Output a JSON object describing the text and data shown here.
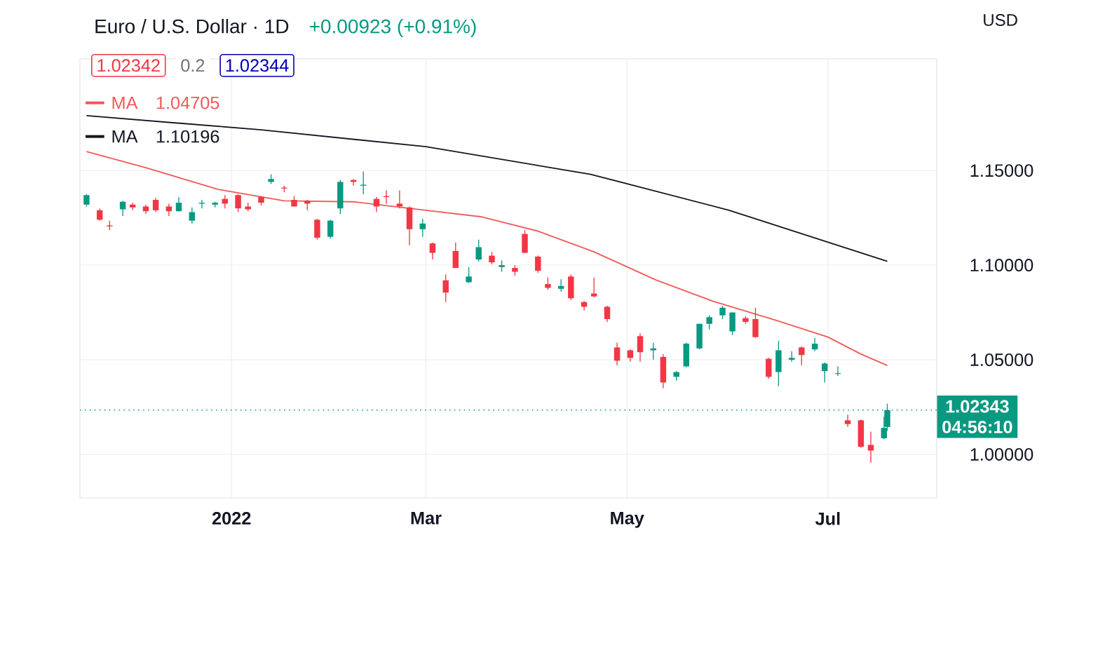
{
  "chart_data": {
    "type": "candlestick",
    "title": "Euro / U.S. Dollar · 1D",
    "subtitle": "+0.00923 (+0.91%)",
    "ylabel": "USD",
    "x": [
      "2021-11-18",
      "2021-11-22",
      "2021-11-25",
      "2021-11-29",
      "2021-12-02",
      "2021-12-06",
      "2021-12-09",
      "2021-12-13",
      "2021-12-16",
      "2021-12-20",
      "2021-12-23",
      "2021-12-27",
      "2021-12-30",
      "2022-01-03",
      "2022-01-06",
      "2022-01-10",
      "2022-01-13",
      "2022-01-17",
      "2022-01-20",
      "2022-01-24",
      "2022-01-27",
      "2022-01-31",
      "2022-02-03",
      "2022-02-07",
      "2022-02-10",
      "2022-02-14",
      "2022-02-17",
      "2022-02-21",
      "2022-02-24",
      "2022-02-28",
      "2022-03-03",
      "2022-03-07",
      "2022-03-10",
      "2022-03-14",
      "2022-03-17",
      "2022-03-21",
      "2022-03-24",
      "2022-03-28",
      "2022-03-31",
      "2022-04-04",
      "2022-04-07",
      "2022-04-11",
      "2022-04-14",
      "2022-04-18",
      "2022-04-21",
      "2022-04-25",
      "2022-04-28",
      "2022-05-02",
      "2022-05-05",
      "2022-05-09",
      "2022-05-12",
      "2022-05-16",
      "2022-05-19",
      "2022-05-23",
      "2022-05-26",
      "2022-05-30",
      "2022-06-02",
      "2022-06-06",
      "2022-06-09",
      "2022-06-13",
      "2022-06-16",
      "2022-06-20",
      "2022-06-23",
      "2022-06-27",
      "2022-06-30",
      "2022-07-04",
      "2022-07-07",
      "2022-07-11",
      "2022-07-14",
      "2022-07-18",
      "2022-07-19"
    ],
    "ohlc": [
      [
        1.132,
        1.1375,
        1.131,
        1.137
      ],
      [
        1.129,
        1.13,
        1.1235,
        1.124
      ],
      [
        1.121,
        1.1235,
        1.1185,
        1.1205
      ],
      [
        1.1295,
        1.134,
        1.126,
        1.1335
      ],
      [
        1.132,
        1.133,
        1.129,
        1.1305
      ],
      [
        1.131,
        1.132,
        1.127,
        1.1285
      ],
      [
        1.1345,
        1.1355,
        1.128,
        1.129
      ],
      [
        1.131,
        1.1325,
        1.126,
        1.1285
      ],
      [
        1.1285,
        1.136,
        1.1285,
        1.133
      ],
      [
        1.1235,
        1.1305,
        1.122,
        1.128
      ],
      [
        1.1325,
        1.1345,
        1.13,
        1.133
      ],
      [
        1.132,
        1.1335,
        1.1305,
        1.133
      ],
      [
        1.135,
        1.137,
        1.13,
        1.1325
      ],
      [
        1.137,
        1.1375,
        1.128,
        1.13
      ],
      [
        1.131,
        1.133,
        1.1285,
        1.1295
      ],
      [
        1.136,
        1.1365,
        1.1315,
        1.133
      ],
      [
        1.144,
        1.148,
        1.143,
        1.1455
      ],
      [
        1.141,
        1.142,
        1.1385,
        1.1405
      ],
      [
        1.1345,
        1.1365,
        1.131,
        1.131
      ],
      [
        1.134,
        1.1345,
        1.129,
        1.1325
      ],
      [
        1.124,
        1.1245,
        1.1135,
        1.1145
      ],
      [
        1.115,
        1.124,
        1.114,
        1.1235
      ],
      [
        1.13,
        1.145,
        1.127,
        1.144
      ],
      [
        1.145,
        1.1455,
        1.142,
        1.144
      ],
      [
        1.142,
        1.1495,
        1.1375,
        1.1425
      ],
      [
        1.135,
        1.136,
        1.128,
        1.131
      ],
      [
        1.1365,
        1.1395,
        1.1325,
        1.136
      ],
      [
        1.1325,
        1.1395,
        1.13,
        1.131
      ],
      [
        1.1305,
        1.131,
        1.1105,
        1.119
      ],
      [
        1.119,
        1.1245,
        1.115,
        1.122
      ],
      [
        1.1115,
        1.112,
        1.103,
        1.1065
      ],
      [
        1.092,
        1.095,
        1.0805,
        1.0855
      ],
      [
        1.1075,
        1.112,
        1.0985,
        1.0985
      ],
      [
        1.091,
        1.099,
        1.0905,
        1.094
      ],
      [
        1.103,
        1.1135,
        1.102,
        1.1095
      ],
      [
        1.105,
        1.107,
        1.1005,
        1.1015
      ],
      [
        1.099,
        1.1025,
        1.0965,
        1.1
      ],
      [
        1.0985,
        1.1,
        1.0945,
        1.0965
      ],
      [
        1.1165,
        1.1185,
        1.1065,
        1.1065
      ],
      [
        1.1045,
        1.105,
        1.096,
        1.097
      ],
      [
        1.09,
        1.0935,
        1.087,
        1.088
      ],
      [
        1.0875,
        1.0925,
        1.086,
        1.089
      ],
      [
        1.094,
        1.095,
        1.0815,
        1.0825
      ],
      [
        1.0805,
        1.081,
        1.076,
        1.078
      ],
      [
        1.085,
        1.0935,
        1.083,
        1.0835
      ],
      [
        1.078,
        1.0785,
        1.07,
        1.0715
      ],
      [
        1.0565,
        1.059,
        1.047,
        1.0495
      ],
      [
        1.055,
        1.0555,
        1.049,
        1.051
      ],
      [
        1.0625,
        1.064,
        1.049,
        1.054
      ],
      [
        1.055,
        1.059,
        1.05,
        1.056
      ],
      [
        1.0515,
        1.053,
        1.035,
        1.038
      ],
      [
        1.041,
        1.044,
        1.039,
        1.0435
      ],
      [
        1.0465,
        1.059,
        1.046,
        1.0585
      ],
      [
        1.056,
        1.069,
        1.0555,
        1.069
      ],
      [
        1.069,
        1.0735,
        1.066,
        1.0725
      ],
      [
        1.0735,
        1.0785,
        1.0715,
        1.0775
      ],
      [
        1.065,
        1.075,
        1.063,
        1.075
      ],
      [
        1.072,
        1.073,
        1.069,
        1.07
      ],
      [
        1.0715,
        1.0775,
        1.0615,
        1.062
      ],
      [
        1.0505,
        1.051,
        1.04,
        1.041
      ],
      [
        1.0435,
        1.06,
        1.036,
        1.055
      ],
      [
        1.05,
        1.0545,
        1.049,
        1.051
      ],
      [
        1.0565,
        1.057,
        1.047,
        1.0525
      ],
      [
        1.0555,
        1.0615,
        1.0545,
        1.0585
      ],
      [
        1.044,
        1.0485,
        1.038,
        1.048
      ],
      [
        1.0425,
        1.0465,
        1.0415,
        1.0425
      ],
      [
        1.018,
        1.021,
        1.0145,
        1.016
      ],
      [
        1.018,
        1.0185,
        1.0035,
        1.004
      ],
      [
        1.005,
        1.012,
        0.9955,
        1.002
      ],
      [
        1.0085,
        1.02,
        1.008,
        1.014
      ],
      [
        1.0145,
        1.0268,
        1.0125,
        1.02343
      ]
    ],
    "series": [
      {
        "name": "MA",
        "type": "line",
        "color": "#f05a5a",
        "x": [
          "2021-11-18",
          "2021-12-06",
          "2021-12-28",
          "2022-01-17",
          "2022-02-07",
          "2022-03-01",
          "2022-03-18",
          "2022-04-04",
          "2022-04-21",
          "2022-05-10",
          "2022-05-27",
          "2022-06-15",
          "2022-07-01",
          "2022-07-11",
          "2022-07-19"
        ],
        "values": [
          1.16,
          1.1515,
          1.14,
          1.134,
          1.1335,
          1.129,
          1.1255,
          1.118,
          1.107,
          1.092,
          1.081,
          1.071,
          1.062,
          1.053,
          1.047
        ]
      },
      {
        "name": "MA",
        "type": "line",
        "color": "#131722",
        "x": [
          "2021-11-18",
          "2022-01-10",
          "2022-03-01",
          "2022-04-20",
          "2022-06-01",
          "2022-07-19"
        ],
        "values": [
          1.179,
          1.1715,
          1.1626,
          1.148,
          1.129,
          1.102
        ]
      }
    ],
    "annotations": [
      "1.02342",
      "0.2",
      "1.02344",
      "04:56:10",
      "1.04705",
      "1.10196"
    ],
    "ref_lines": [
      {
        "axis": "y",
        "value": 1.02343,
        "label": "1.02343",
        "color": "#089981",
        "line_style": "dotted"
      }
    ],
    "xlim": [
      "2021-11-16",
      "2022-08-03"
    ],
    "xticks": [
      {
        "value": "2022-01-01",
        "label": "2022"
      },
      {
        "value": "2022-03-01",
        "label": "Mar"
      },
      {
        "value": "2022-05-01",
        "label": "May"
      },
      {
        "value": "2022-07-01",
        "label": "Jul"
      }
    ],
    "ylim": [
      0.977,
      1.209
    ],
    "yticks": [
      {
        "value": 1.0,
        "label": "1.00000"
      },
      {
        "value": 1.05,
        "label": "1.05000"
      },
      {
        "value": 1.1,
        "label": "1.10000"
      },
      {
        "value": 1.15,
        "label": "1.15000"
      }
    ],
    "grid": true,
    "legend": "top left"
  }
}
